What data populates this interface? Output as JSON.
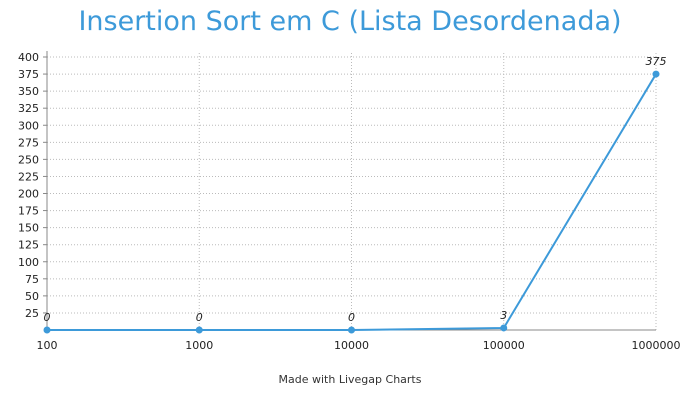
{
  "chart_data": {
    "type": "line",
    "title": "Insertion Sort em C (Lista Desordenada)",
    "xlabel": "",
    "ylabel": "",
    "categories": [
      "100",
      "1000",
      "10000",
      "100000",
      "1000000"
    ],
    "series": [
      {
        "values": [
          0,
          0,
          0,
          3,
          375
        ],
        "color": "#3d9ad9"
      }
    ],
    "data_labels": [
      "0",
      "0",
      "0",
      "3",
      "375"
    ],
    "ylim": [
      0,
      400
    ],
    "yticks": [
      25,
      50,
      75,
      100,
      125,
      150,
      175,
      200,
      225,
      250,
      275,
      300,
      325,
      350,
      375,
      400
    ],
    "grid": true,
    "legend": "none"
  },
  "footer": "Made with Livegap Charts",
  "colors": {
    "accent": "#3d9ad9",
    "grid": "#bbbbbb",
    "axis": "#888888"
  }
}
